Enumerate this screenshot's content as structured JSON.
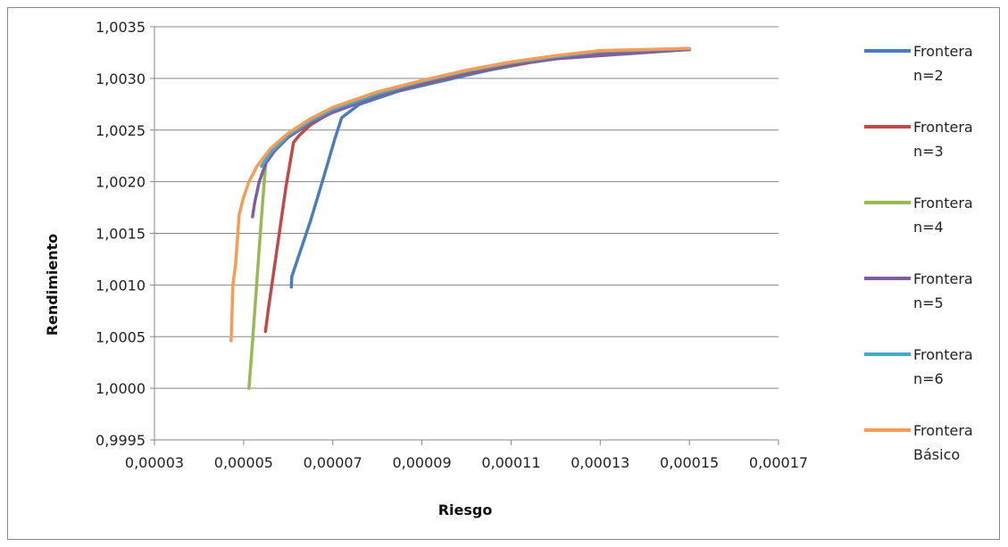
{
  "chart_data": {
    "type": "line",
    "title": "",
    "xlabel": "Riesgo",
    "ylabel": "Rendimiento",
    "xlim": [
      3e-05,
      0.00017
    ],
    "ylim": [
      0.9995,
      1.0035
    ],
    "x_ticks": [
      {
        "value": 3e-05,
        "label": "0,00003"
      },
      {
        "value": 5e-05,
        "label": "0,00005"
      },
      {
        "value": 7e-05,
        "label": "0,00007"
      },
      {
        "value": 9e-05,
        "label": "0,00009"
      },
      {
        "value": 0.00011,
        "label": "0,00011"
      },
      {
        "value": 0.00013,
        "label": "0,00013"
      },
      {
        "value": 0.00015,
        "label": "0,00015"
      },
      {
        "value": 0.00017,
        "label": "0,00017"
      }
    ],
    "y_ticks": [
      {
        "value": 0.9995,
        "label": "0,9995"
      },
      {
        "value": 1.0,
        "label": "1,0000"
      },
      {
        "value": 1.0005,
        "label": "1,0005"
      },
      {
        "value": 1.001,
        "label": "1,0010"
      },
      {
        "value": 1.0015,
        "label": "1,0015"
      },
      {
        "value": 1.002,
        "label": "1,0020"
      },
      {
        "value": 1.0025,
        "label": "1,0025"
      },
      {
        "value": 1.003,
        "label": "1,0030"
      },
      {
        "value": 1.0035,
        "label": "1,0035"
      }
    ],
    "grid": {
      "horizontal": true,
      "vertical": false
    },
    "legend_position": "right",
    "series": [
      {
        "name": "Frontera n=2",
        "legend_lines": [
          "Frontera",
          "n=2"
        ],
        "color": "#4A7EBB",
        "points": [
          [
            6.07e-05,
            1.00098
          ],
          [
            6.08e-05,
            1.00108
          ],
          [
            6.25e-05,
            1.0013
          ],
          [
            6.5e-05,
            1.00162
          ],
          [
            6.8e-05,
            1.00205
          ],
          [
            7.05e-05,
            1.00242
          ],
          [
            7.2e-05,
            1.00262
          ],
          [
            7.6e-05,
            1.00275
          ],
          [
            8.5e-05,
            1.00288
          ],
          [
            9.5e-05,
            1.00298
          ],
          [
            0.000105,
            1.00308
          ],
          [
            0.000115,
            1.00316
          ],
          [
            0.000125,
            1.00322
          ],
          [
            0.000135,
            1.00325
          ],
          [
            0.00015,
            1.00328
          ]
        ]
      },
      {
        "name": "Frontera n=3",
        "legend_lines": [
          "Frontera",
          "n=3"
        ],
        "color": "#BE4B48",
        "points": [
          [
            5.49e-05,
            1.00055
          ],
          [
            5.55e-05,
            1.00075
          ],
          [
            5.75e-05,
            1.00135
          ],
          [
            5.95e-05,
            1.00195
          ],
          [
            6.12e-05,
            1.00238
          ],
          [
            6.25e-05,
            1.00245
          ],
          [
            6.5e-05,
            1.00255
          ],
          [
            7e-05,
            1.00268
          ],
          [
            8e-05,
            1.00283
          ],
          [
            9e-05,
            1.00295
          ],
          [
            0.0001,
            1.00305
          ],
          [
            0.00011,
            1.00313
          ],
          [
            0.00012,
            1.00319
          ],
          [
            0.00013,
            1.00324
          ],
          [
            0.00015,
            1.00328
          ]
        ]
      },
      {
        "name": "Frontera n=4",
        "legend_lines": [
          "Frontera",
          "n=4"
        ],
        "color": "#98B954",
        "points": [
          [
            5.12e-05,
            1.0
          ],
          [
            5.2e-05,
            1.00045
          ],
          [
            5.3e-05,
            1.00105
          ],
          [
            5.4e-05,
            1.00165
          ],
          [
            5.5e-05,
            1.0022
          ]
        ]
      },
      {
        "name": "Frontera n=5",
        "legend_lines": [
          "Frontera",
          "n=5"
        ],
        "color": "#7D60A0",
        "points": [
          [
            5.2e-05,
            1.00166
          ],
          [
            5.25e-05,
            1.0018
          ],
          [
            5.35e-05,
            1.002
          ],
          [
            5.5e-05,
            1.00218
          ],
          [
            5.7e-05,
            1.0023
          ],
          [
            6e-05,
            1.00243
          ],
          [
            6.5e-05,
            1.00257
          ],
          [
            7e-05,
            1.00267
          ],
          [
            8e-05,
            1.00283
          ],
          [
            9e-05,
            1.00296
          ],
          [
            0.0001,
            1.00306
          ],
          [
            0.00011,
            1.00314
          ],
          [
            0.00012,
            1.00319
          ],
          [
            0.00013,
            1.00322
          ],
          [
            0.00015,
            1.00328
          ]
        ]
      },
      {
        "name": "Frontera n=6",
        "legend_lines": [
          "Frontera",
          "n=6"
        ],
        "color": "#46AAC5",
        "points": [
          [
            5.4e-05,
            1.00215
          ],
          [
            5.6e-05,
            1.00228
          ],
          [
            6e-05,
            1.00245
          ],
          [
            6.5e-05,
            1.00259
          ],
          [
            7e-05,
            1.0027
          ],
          [
            8e-05,
            1.00285
          ],
          [
            9e-05,
            1.00297
          ],
          [
            0.0001,
            1.00307
          ],
          [
            0.00011,
            1.00315
          ],
          [
            0.00012,
            1.00321
          ],
          [
            0.00013,
            1.00326
          ],
          [
            0.00015,
            1.00329
          ]
        ]
      },
      {
        "name": "Frontera Básico",
        "legend_lines": [
          "Frontera",
          "Básico"
        ],
        "color": "#F59D56",
        "points": [
          [
            4.72e-05,
            1.00046
          ],
          [
            4.76e-05,
            1.001
          ],
          [
            4.82e-05,
            1.0012
          ],
          [
            4.9e-05,
            1.00168
          ],
          [
            5e-05,
            1.00185
          ],
          [
            5.12e-05,
            1.002
          ],
          [
            5.3e-05,
            1.00215
          ],
          [
            5.6e-05,
            1.00232
          ],
          [
            6e-05,
            1.00247
          ],
          [
            6.5e-05,
            1.00261
          ],
          [
            7e-05,
            1.00272
          ],
          [
            8e-05,
            1.00287
          ],
          [
            9e-05,
            1.00298
          ],
          [
            0.0001,
            1.00308
          ],
          [
            0.00011,
            1.00316
          ],
          [
            0.00012,
            1.00322
          ],
          [
            0.00013,
            1.00327
          ],
          [
            0.00015,
            1.00329
          ]
        ]
      }
    ]
  }
}
